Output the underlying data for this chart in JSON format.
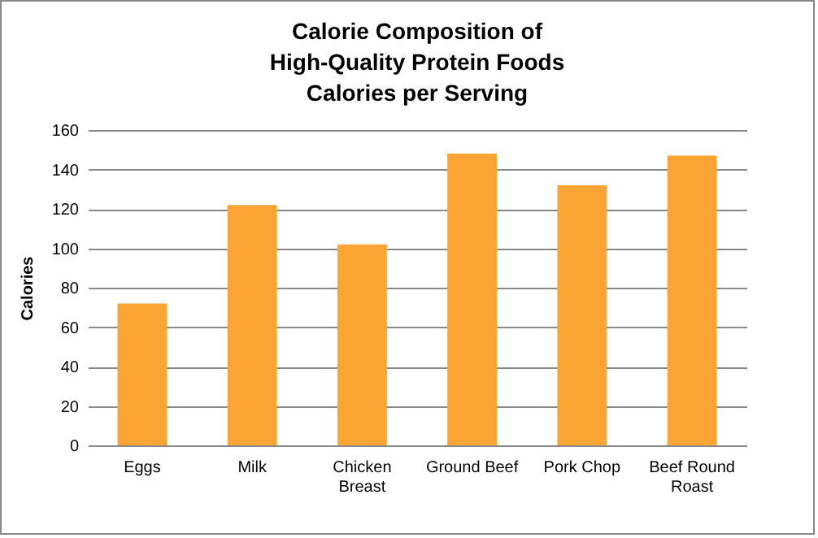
{
  "chart_data": {
    "type": "bar",
    "title": "Calorie Composition of\nHigh-Quality Protein Foods\nCalories per Serving",
    "ylabel": "Calories",
    "categories": [
      "Eggs",
      "Milk",
      "Chicken Breast",
      "Ground Beef",
      "Pork Chop",
      "Beef Round Roast"
    ],
    "values": [
      72,
      122,
      102,
      148,
      132,
      147
    ],
    "color": "#f9a433",
    "ylim": [
      0,
      160
    ],
    "yticks": [
      0,
      20,
      40,
      60,
      80,
      100,
      120,
      140,
      160
    ],
    "grid": "y"
  }
}
